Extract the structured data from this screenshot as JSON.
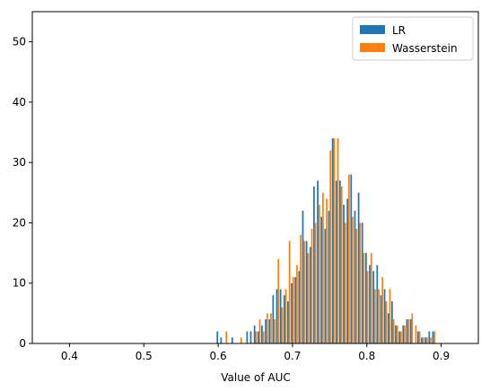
{
  "chart_data": {
    "type": "bar",
    "title": "",
    "xlabel": "Value of AUC",
    "ylabel": "",
    "xlim": [
      0.35,
      0.95
    ],
    "ylim": [
      0,
      55
    ],
    "xticks": [
      "0.4",
      "0.5",
      "0.6",
      "0.7",
      "0.8",
      "0.9"
    ],
    "yticks": [
      "0",
      "10",
      "20",
      "30",
      "40",
      "50"
    ],
    "grid": false,
    "legend_position": "top-right",
    "bin_width": 0.005,
    "series": [
      {
        "name": "LR",
        "color": "#1f77b4",
        "bins": [
          {
            "x": 0.6,
            "v": 2
          },
          {
            "x": 0.605,
            "v": 1
          },
          {
            "x": 0.62,
            "v": 1
          },
          {
            "x": 0.64,
            "v": 2
          },
          {
            "x": 0.645,
            "v": 2
          },
          {
            "x": 0.65,
            "v": 3
          },
          {
            "x": 0.655,
            "v": 2
          },
          {
            "x": 0.66,
            "v": 3
          },
          {
            "x": 0.665,
            "v": 4
          },
          {
            "x": 0.67,
            "v": 4
          },
          {
            "x": 0.675,
            "v": 8
          },
          {
            "x": 0.68,
            "v": 9
          },
          {
            "x": 0.685,
            "v": 9
          },
          {
            "x": 0.69,
            "v": 8
          },
          {
            "x": 0.695,
            "v": 7
          },
          {
            "x": 0.7,
            "v": 10
          },
          {
            "x": 0.705,
            "v": 11
          },
          {
            "x": 0.71,
            "v": 12
          },
          {
            "x": 0.715,
            "v": 22
          },
          {
            "x": 0.72,
            "v": 17
          },
          {
            "x": 0.725,
            "v": 16
          },
          {
            "x": 0.73,
            "v": 26
          },
          {
            "x": 0.735,
            "v": 27
          },
          {
            "x": 0.74,
            "v": 21
          },
          {
            "x": 0.745,
            "v": 19
          },
          {
            "x": 0.75,
            "v": 22
          },
          {
            "x": 0.755,
            "v": 34
          },
          {
            "x": 0.76,
            "v": 27
          },
          {
            "x": 0.765,
            "v": 27
          },
          {
            "x": 0.77,
            "v": 23
          },
          {
            "x": 0.775,
            "v": 24
          },
          {
            "x": 0.78,
            "v": 28
          },
          {
            "x": 0.785,
            "v": 22
          },
          {
            "x": 0.79,
            "v": 25
          },
          {
            "x": 0.795,
            "v": 20
          },
          {
            "x": 0.8,
            "v": 15
          },
          {
            "x": 0.805,
            "v": 13
          },
          {
            "x": 0.81,
            "v": 12
          },
          {
            "x": 0.815,
            "v": 13
          },
          {
            "x": 0.82,
            "v": 8
          },
          {
            "x": 0.825,
            "v": 9
          },
          {
            "x": 0.83,
            "v": 5
          },
          {
            "x": 0.835,
            "v": 7
          },
          {
            "x": 0.84,
            "v": 3
          },
          {
            "x": 0.845,
            "v": 2
          },
          {
            "x": 0.85,
            "v": 3
          },
          {
            "x": 0.855,
            "v": 4
          },
          {
            "x": 0.86,
            "v": 4
          },
          {
            "x": 0.87,
            "v": 2
          },
          {
            "x": 0.875,
            "v": 1
          },
          {
            "x": 0.88,
            "v": 1
          },
          {
            "x": 0.885,
            "v": 2
          },
          {
            "x": 0.89,
            "v": 2
          }
        ]
      },
      {
        "name": "Wasserstein",
        "color": "#ff7f0e",
        "bins": [
          {
            "x": 0.6,
            "v": 0
          },
          {
            "x": 0.61,
            "v": 2
          },
          {
            "x": 0.63,
            "v": 1
          },
          {
            "x": 0.65,
            "v": 2
          },
          {
            "x": 0.655,
            "v": 4
          },
          {
            "x": 0.66,
            "v": 2
          },
          {
            "x": 0.665,
            "v": 5
          },
          {
            "x": 0.67,
            "v": 5
          },
          {
            "x": 0.675,
            "v": 4
          },
          {
            "x": 0.68,
            "v": 14
          },
          {
            "x": 0.685,
            "v": 6
          },
          {
            "x": 0.69,
            "v": 9
          },
          {
            "x": 0.695,
            "v": 17
          },
          {
            "x": 0.7,
            "v": 11
          },
          {
            "x": 0.705,
            "v": 13
          },
          {
            "x": 0.71,
            "v": 18
          },
          {
            "x": 0.715,
            "v": 17
          },
          {
            "x": 0.72,
            "v": 15
          },
          {
            "x": 0.725,
            "v": 19
          },
          {
            "x": 0.73,
            "v": 20
          },
          {
            "x": 0.735,
            "v": 23
          },
          {
            "x": 0.74,
            "v": 25
          },
          {
            "x": 0.745,
            "v": 24
          },
          {
            "x": 0.75,
            "v": 32
          },
          {
            "x": 0.755,
            "v": 34
          },
          {
            "x": 0.76,
            "v": 34
          },
          {
            "x": 0.765,
            "v": 26
          },
          {
            "x": 0.77,
            "v": 20
          },
          {
            "x": 0.775,
            "v": 28
          },
          {
            "x": 0.78,
            "v": 21
          },
          {
            "x": 0.785,
            "v": 19
          },
          {
            "x": 0.79,
            "v": 20
          },
          {
            "x": 0.795,
            "v": 15
          },
          {
            "x": 0.8,
            "v": 12
          },
          {
            "x": 0.805,
            "v": 15
          },
          {
            "x": 0.81,
            "v": 9
          },
          {
            "x": 0.815,
            "v": 9
          },
          {
            "x": 0.82,
            "v": 11
          },
          {
            "x": 0.825,
            "v": 7
          },
          {
            "x": 0.83,
            "v": 9
          },
          {
            "x": 0.835,
            "v": 4
          },
          {
            "x": 0.84,
            "v": 3
          },
          {
            "x": 0.845,
            "v": 2
          },
          {
            "x": 0.85,
            "v": 3
          },
          {
            "x": 0.855,
            "v": 4
          },
          {
            "x": 0.86,
            "v": 5
          },
          {
            "x": 0.865,
            "v": 3
          },
          {
            "x": 0.87,
            "v": 2
          },
          {
            "x": 0.875,
            "v": 1
          },
          {
            "x": 0.88,
            "v": 1
          },
          {
            "x": 0.885,
            "v": 1
          },
          {
            "x": 0.89,
            "v": 2
          }
        ]
      }
    ]
  }
}
